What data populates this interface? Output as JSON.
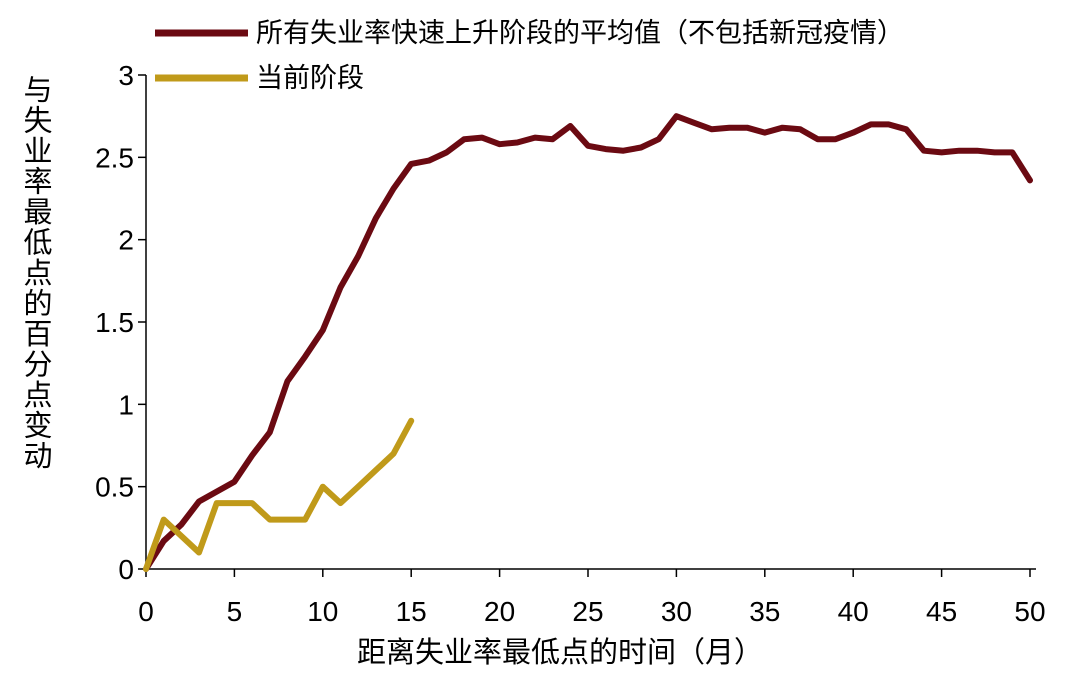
{
  "chart_data": {
    "type": "line",
    "title": "",
    "xlabel": "距离失业率最低点的时间（月）",
    "ylabel": "与失业率最低点的百分点变动",
    "xlim": [
      0,
      50
    ],
    "ylim": [
      0,
      3
    ],
    "xticks": [
      0,
      5,
      10,
      15,
      20,
      25,
      30,
      35,
      40,
      45,
      50
    ],
    "yticks": [
      0,
      0.5,
      1,
      1.5,
      2,
      2.5,
      3
    ],
    "ytick_labels": [
      "0",
      "0.5",
      "1",
      "1.5",
      "2",
      "2.5",
      "3"
    ],
    "grid": false,
    "legend_position": "top",
    "series": [
      {
        "name": "所有失业率快速上升阶段的平均值（不包括新冠疫情）",
        "color": "#6b0a12",
        "x": [
          0,
          1,
          2,
          3,
          4,
          5,
          6,
          7,
          8,
          9,
          10,
          11,
          12,
          13,
          14,
          15,
          16,
          17,
          18,
          19,
          20,
          21,
          22,
          23,
          24,
          25,
          26,
          27,
          28,
          29,
          30,
          31,
          32,
          33,
          34,
          35,
          36,
          37,
          38,
          39,
          40,
          41,
          42,
          43,
          44,
          45,
          46,
          47,
          48,
          49,
          50
        ],
        "y": [
          0,
          0.17,
          0.27,
          0.41,
          0.47,
          0.53,
          0.69,
          0.83,
          1.14,
          1.29,
          1.45,
          1.71,
          1.9,
          2.13,
          2.31,
          2.46,
          2.48,
          2.53,
          2.61,
          2.62,
          2.58,
          2.59,
          2.62,
          2.61,
          2.69,
          2.57,
          2.55,
          2.54,
          2.56,
          2.61,
          2.75,
          2.71,
          2.67,
          2.68,
          2.68,
          2.65,
          2.68,
          2.67,
          2.61,
          2.61,
          2.65,
          2.7,
          2.7,
          2.67,
          2.54,
          2.53,
          2.54,
          2.54,
          2.53,
          2.53,
          2.36
        ]
      },
      {
        "name": "当前阶段",
        "color": "#c09a1a",
        "x": [
          0,
          1,
          2,
          3,
          4,
          5,
          6,
          7,
          8,
          9,
          10,
          11,
          12,
          13,
          14,
          15
        ],
        "y": [
          0,
          0.3,
          0.2,
          0.1,
          0.4,
          0.4,
          0.4,
          0.3,
          0.3,
          0.3,
          0.5,
          0.4,
          0.5,
          0.6,
          0.7,
          0.9
        ]
      }
    ]
  }
}
